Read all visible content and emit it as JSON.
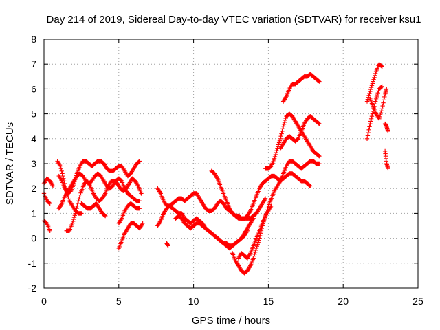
{
  "chart_data": {
    "type": "scatter",
    "title": "Day 214 of 2019, Sidereal Day-to-day VTEC variation (SDTVAR) for receiver ksu1",
    "xlabel": "GPS time / hours",
    "ylabel": "SDTVAR / TECUs",
    "xlim": [
      0,
      25
    ],
    "ylim": [
      -2,
      8
    ],
    "xticks": [
      "0",
      "5",
      "10",
      "15",
      "20",
      "25"
    ],
    "yticks": [
      "-2",
      "-1",
      "0",
      "1",
      "2",
      "3",
      "4",
      "5",
      "6",
      "7",
      "8"
    ],
    "xtick_values": [
      0,
      5,
      10,
      15,
      20,
      25
    ],
    "ytick_values": [
      -2,
      -1,
      0,
      1,
      2,
      3,
      4,
      5,
      6,
      7,
      8
    ],
    "grid": true,
    "marker": "+",
    "color": "#ff0000",
    "series": [
      {
        "x": [
          0,
          0.2,
          0.4
        ],
        "y": [
          0.7,
          0.6,
          0.3
        ]
      },
      {
        "x": [
          0,
          0.2,
          0.4,
          0.6
        ],
        "y": [
          2.2,
          2.4,
          2.3,
          2.1
        ]
      },
      {
        "x": [
          0,
          0.2,
          0.4
        ],
        "y": [
          1.8,
          1.5,
          1.4
        ]
      },
      {
        "x": [
          0.9,
          1.1,
          1.3,
          1.5,
          1.7,
          1.9,
          2.1,
          2.3,
          2.5
        ],
        "y": [
          3.1,
          2.9,
          2.4,
          1.9,
          1.5,
          1.3,
          1.1,
          1.0,
          1.0
        ]
      },
      {
        "x": [
          1.0,
          1.2,
          1.4,
          1.6,
          1.8,
          2.0,
          2.2,
          2.4,
          2.6,
          2.8,
          3.0,
          3.2,
          3.4,
          3.6,
          3.8,
          4.0,
          4.2,
          4.4,
          4.6,
          4.8,
          5.0,
          5.2,
          5.4,
          5.6,
          5.8,
          6.0,
          6.2,
          6.4
        ],
        "y": [
          2.5,
          2.3,
          2.0,
          1.8,
          1.9,
          2.2,
          2.6,
          2.9,
          3.1,
          3.1,
          3.0,
          2.9,
          3.0,
          3.1,
          3.1,
          3.0,
          2.8,
          2.7,
          2.7,
          2.8,
          2.9,
          2.9,
          2.7,
          2.5,
          2.6,
          2.8,
          3.0,
          3.1
        ]
      },
      {
        "x": [
          1.0,
          1.2,
          1.4,
          1.6,
          1.8,
          2.0,
          2.2,
          2.4,
          2.6,
          2.8,
          3.0,
          3.2,
          3.4,
          3.6,
          3.8,
          4.0,
          4.2,
          4.4,
          4.6,
          4.8,
          5.0,
          5.2,
          5.4,
          5.6,
          5.8,
          6.0,
          6.2,
          6.4
        ],
        "y": [
          1.2,
          1.4,
          1.7,
          1.9,
          2.1,
          2.3,
          2.5,
          2.6,
          2.5,
          2.3,
          2.2,
          2.3,
          2.5,
          2.6,
          2.5,
          2.3,
          2.1,
          2.0,
          2.1,
          2.3,
          2.4,
          2.3,
          2.0,
          1.8,
          1.7,
          1.6,
          1.5,
          1.5
        ]
      },
      {
        "x": [
          1.5,
          1.7,
          1.9,
          2.1,
          2.3,
          2.5,
          2.7,
          2.9,
          3.1,
          3.3,
          3.5,
          3.7,
          3.9,
          4.1,
          4.3,
          4.5,
          4.7,
          4.9,
          5.1,
          5.3,
          5.5,
          5.7,
          5.9,
          6.1,
          6.3,
          6.5
        ],
        "y": [
          0.3,
          0.3,
          0.6,
          1.0,
          1.5,
          1.9,
          2.2,
          2.3,
          2.1,
          1.8,
          1.6,
          1.5,
          1.6,
          1.8,
          2.1,
          2.3,
          2.3,
          2.2,
          2.0,
          1.9,
          2.0,
          2.2,
          2.4,
          2.3,
          2.1,
          1.8
        ]
      },
      {
        "x": [
          2.5,
          2.7,
          2.9,
          3.1,
          3.3,
          3.5,
          3.7,
          3.9,
          4.1
        ],
        "y": [
          1.4,
          1.3,
          1.2,
          1.2,
          1.3,
          1.4,
          1.2,
          1.0,
          0.9
        ]
      },
      {
        "x": [
          5.0,
          5.2,
          5.4,
          5.6,
          5.8,
          6.0,
          6.2,
          6.4,
          6.6
        ],
        "y": [
          -0.4,
          -0.1,
          0.2,
          0.4,
          0.6,
          0.6,
          0.5,
          0.4,
          0.6
        ]
      },
      {
        "x": [
          5.0,
          5.2,
          5.4,
          5.6,
          5.8,
          6.0,
          6.2,
          6.4
        ],
        "y": [
          0.6,
          0.8,
          1.1,
          1.3,
          1.4,
          1.3,
          1.2,
          1.2
        ]
      },
      {
        "x": [
          7.6,
          7.8,
          8.0,
          8.2,
          8.4,
          8.6,
          8.8,
          9.0,
          9.2,
          9.4,
          9.6,
          9.8,
          10.0,
          10.2,
          10.4,
          10.6,
          10.8,
          11.0,
          11.2,
          11.4,
          11.6,
          11.8,
          12.0,
          12.2,
          12.4,
          12.6,
          12.8,
          13.0,
          13.2,
          13.4,
          13.6,
          13.8,
          14.0,
          14.2,
          14.4,
          14.6,
          14.8
        ],
        "y": [
          2.0,
          1.8,
          1.5,
          1.3,
          1.3,
          1.4,
          1.5,
          1.6,
          1.6,
          1.5,
          1.6,
          1.7,
          1.8,
          1.8,
          1.6,
          1.4,
          1.2,
          1.1,
          1.1,
          1.2,
          1.4,
          1.5,
          1.4,
          1.2,
          1.1,
          1.0,
          0.9,
          0.9,
          0.8,
          0.8,
          0.8,
          0.8,
          0.9,
          1.0,
          1.2,
          1.4,
          1.6
        ]
      },
      {
        "x": [
          7.6,
          7.8,
          8.0,
          8.2,
          8.4,
          8.6,
          8.8,
          9.0,
          9.2,
          9.4,
          9.6,
          9.8,
          10.0,
          10.2,
          10.4,
          10.6,
          10.8,
          11.0,
          11.2,
          11.4,
          11.6,
          11.8,
          12.0,
          12.2,
          12.4,
          12.6,
          12.8,
          13.0,
          13.2,
          13.4,
          13.6,
          13.8,
          14.0
        ],
        "y": [
          0.5,
          0.7,
          1.0,
          1.2,
          1.3,
          1.2,
          1.1,
          1.0,
          1.0,
          0.8,
          0.7,
          0.6,
          0.7,
          0.8,
          0.7,
          0.6,
          0.4,
          0.3,
          0.2,
          0.1,
          0.0,
          -0.1,
          -0.2,
          -0.3,
          -0.4,
          -0.3,
          -0.2,
          -0.1,
          0.0,
          0.2,
          0.4,
          0.6,
          0.8
        ]
      },
      {
        "x": [
          8.8,
          9.0,
          9.2,
          9.4,
          9.6,
          9.8,
          10.0,
          10.2,
          10.4,
          10.6,
          10.8,
          11.0,
          11.2,
          11.4,
          11.6,
          11.8,
          12.0,
          12.2,
          12.4,
          12.6,
          12.8,
          13.0,
          13.2,
          13.4,
          13.6
        ],
        "y": [
          0.8,
          0.9,
          0.8,
          0.6,
          0.5,
          0.4,
          0.5,
          0.6,
          0.6,
          0.5,
          0.4,
          0.3,
          0.2,
          0.1,
          0.0,
          -0.1,
          -0.2,
          -0.2,
          -0.3,
          -0.3,
          -0.2,
          -0.1,
          0.0,
          0.1,
          0.3
        ]
      },
      {
        "x": [
          8.2,
          8.3
        ],
        "y": [
          -0.2,
          -0.3
        ]
      },
      {
        "x": [
          11.2,
          11.4,
          11.6,
          11.8,
          12.0,
          12.2,
          12.4,
          12.6,
          12.8,
          13.0,
          13.2,
          13.4,
          13.6,
          13.8,
          14.0,
          14.2,
          14.4,
          14.6,
          14.8,
          15.0,
          15.2,
          15.4,
          15.6,
          15.8,
          16.0,
          16.2,
          16.4,
          16.6,
          16.8,
          17.0,
          17.2,
          17.4,
          17.6,
          17.8
        ],
        "y": [
          2.7,
          2.6,
          2.4,
          2.1,
          1.8,
          1.5,
          1.2,
          1.0,
          0.9,
          0.8,
          0.8,
          0.8,
          0.9,
          1.1,
          1.4,
          1.7,
          2.0,
          2.2,
          2.3,
          2.4,
          2.5,
          2.5,
          2.4,
          2.3,
          2.4,
          2.5,
          2.6,
          2.6,
          2.5,
          2.4,
          2.3,
          2.3,
          2.2,
          2.1
        ]
      },
      {
        "x": [
          12.6,
          12.8,
          13.0,
          13.2,
          13.4,
          13.6,
          13.8,
          14.0,
          14.2,
          14.4,
          14.6,
          14.8,
          15.0,
          15.2,
          15.4,
          15.6,
          15.8,
          16.0,
          16.2,
          16.4,
          16.6,
          16.8,
          17.0,
          17.2,
          17.4,
          17.6,
          17.8,
          18.0,
          18.2,
          18.4
        ],
        "y": [
          -0.6,
          -0.9,
          -1.1,
          -1.3,
          -1.4,
          -1.3,
          -1.1,
          -0.8,
          -0.4,
          0.0,
          0.5,
          0.9,
          1.3,
          1.6,
          1.9,
          2.1,
          2.3,
          2.6,
          2.9,
          3.1,
          3.1,
          3.0,
          2.9,
          2.8,
          2.9,
          3.0,
          3.1,
          3.1,
          3.0,
          3.0
        ]
      },
      {
        "x": [
          13.0,
          13.2,
          13.4,
          13.6,
          13.8,
          14.0,
          14.2,
          14.4,
          14.6,
          14.8,
          15.0,
          15.2
        ],
        "y": [
          -0.8,
          -0.6,
          -0.7,
          -0.8,
          -0.6,
          -0.3,
          0.0,
          0.3,
          0.6,
          0.9,
          1.1,
          1.3
        ]
      },
      {
        "x": [
          14.8,
          15.0,
          15.2,
          15.4,
          15.6,
          15.8,
          16.0,
          16.2,
          16.4,
          16.6,
          16.8,
          17.0,
          17.2,
          17.4,
          17.6,
          17.8,
          18.0,
          18.2,
          18.4
        ],
        "y": [
          2.8,
          2.8,
          2.9,
          3.2,
          3.6,
          4.0,
          4.5,
          4.9,
          5.0,
          4.9,
          4.7,
          4.5,
          4.3,
          4.1,
          3.9,
          3.7,
          3.5,
          3.4,
          3.3
        ]
      },
      {
        "x": [
          15.8,
          16.0,
          16.2,
          16.4,
          16.6,
          16.8,
          17.0,
          17.2,
          17.4,
          17.6,
          17.8,
          18.0,
          18.2,
          18.4
        ],
        "y": [
          3.6,
          3.8,
          4.0,
          4.1,
          4.0,
          3.9,
          4.0,
          4.3,
          4.6,
          4.8,
          4.9,
          4.8,
          4.7,
          4.6
        ]
      },
      {
        "x": [
          16.0,
          16.2,
          16.4,
          16.6,
          16.8,
          17.0,
          17.2,
          17.4,
          17.6,
          17.8,
          18.0,
          18.2,
          18.4
        ],
        "y": [
          5.5,
          5.7,
          6.0,
          6.2,
          6.2,
          6.3,
          6.4,
          6.5,
          6.5,
          6.6,
          6.5,
          6.4,
          6.3
        ]
      },
      {
        "x": [
          21.6,
          21.8,
          22.0,
          22.2,
          22.4,
          22.6
        ],
        "y": [
          4.0,
          4.6,
          5.1,
          5.6,
          6.0,
          6.1
        ]
      },
      {
        "x": [
          21.6,
          21.8,
          22.0,
          22.2,
          22.4,
          22.6
        ],
        "y": [
          5.5,
          5.9,
          6.3,
          6.7,
          7.0,
          6.9
        ]
      },
      {
        "x": [
          21.8,
          22.0,
          22.2,
          22.4,
          22.6,
          22.8,
          22.9
        ],
        "y": [
          5.6,
          5.3,
          5.0,
          4.8,
          5.2,
          5.8,
          6.0
        ]
      },
      {
        "x": [
          22.8,
          22.9,
          23.0
        ],
        "y": [
          3.5,
          3.0,
          2.8
        ]
      },
      {
        "x": [
          22.8,
          22.9,
          23.0
        ],
        "y": [
          4.6,
          4.5,
          4.3
        ]
      }
    ]
  }
}
